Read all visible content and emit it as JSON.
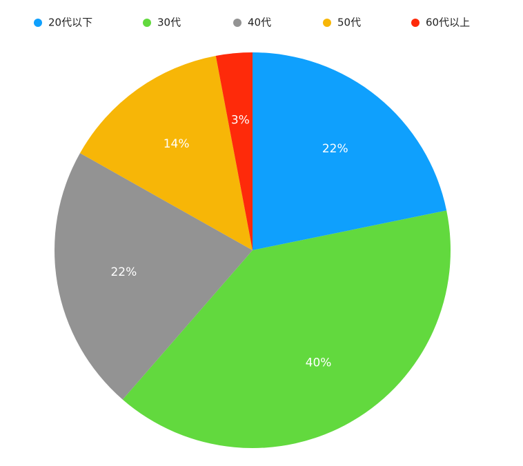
{
  "chart_data": {
    "type": "pie",
    "categories": [
      "20代以下",
      "30代",
      "40代",
      "50代",
      "60代以上"
    ],
    "values": [
      22,
      40,
      22,
      14,
      3
    ],
    "value_labels": [
      "22%",
      "40%",
      "22%",
      "14%",
      "3%"
    ],
    "colors": [
      "#0fa0fd",
      "#62d93e",
      "#939393",
      "#f7b607",
      "#fe2a0a"
    ],
    "legend": "top"
  }
}
